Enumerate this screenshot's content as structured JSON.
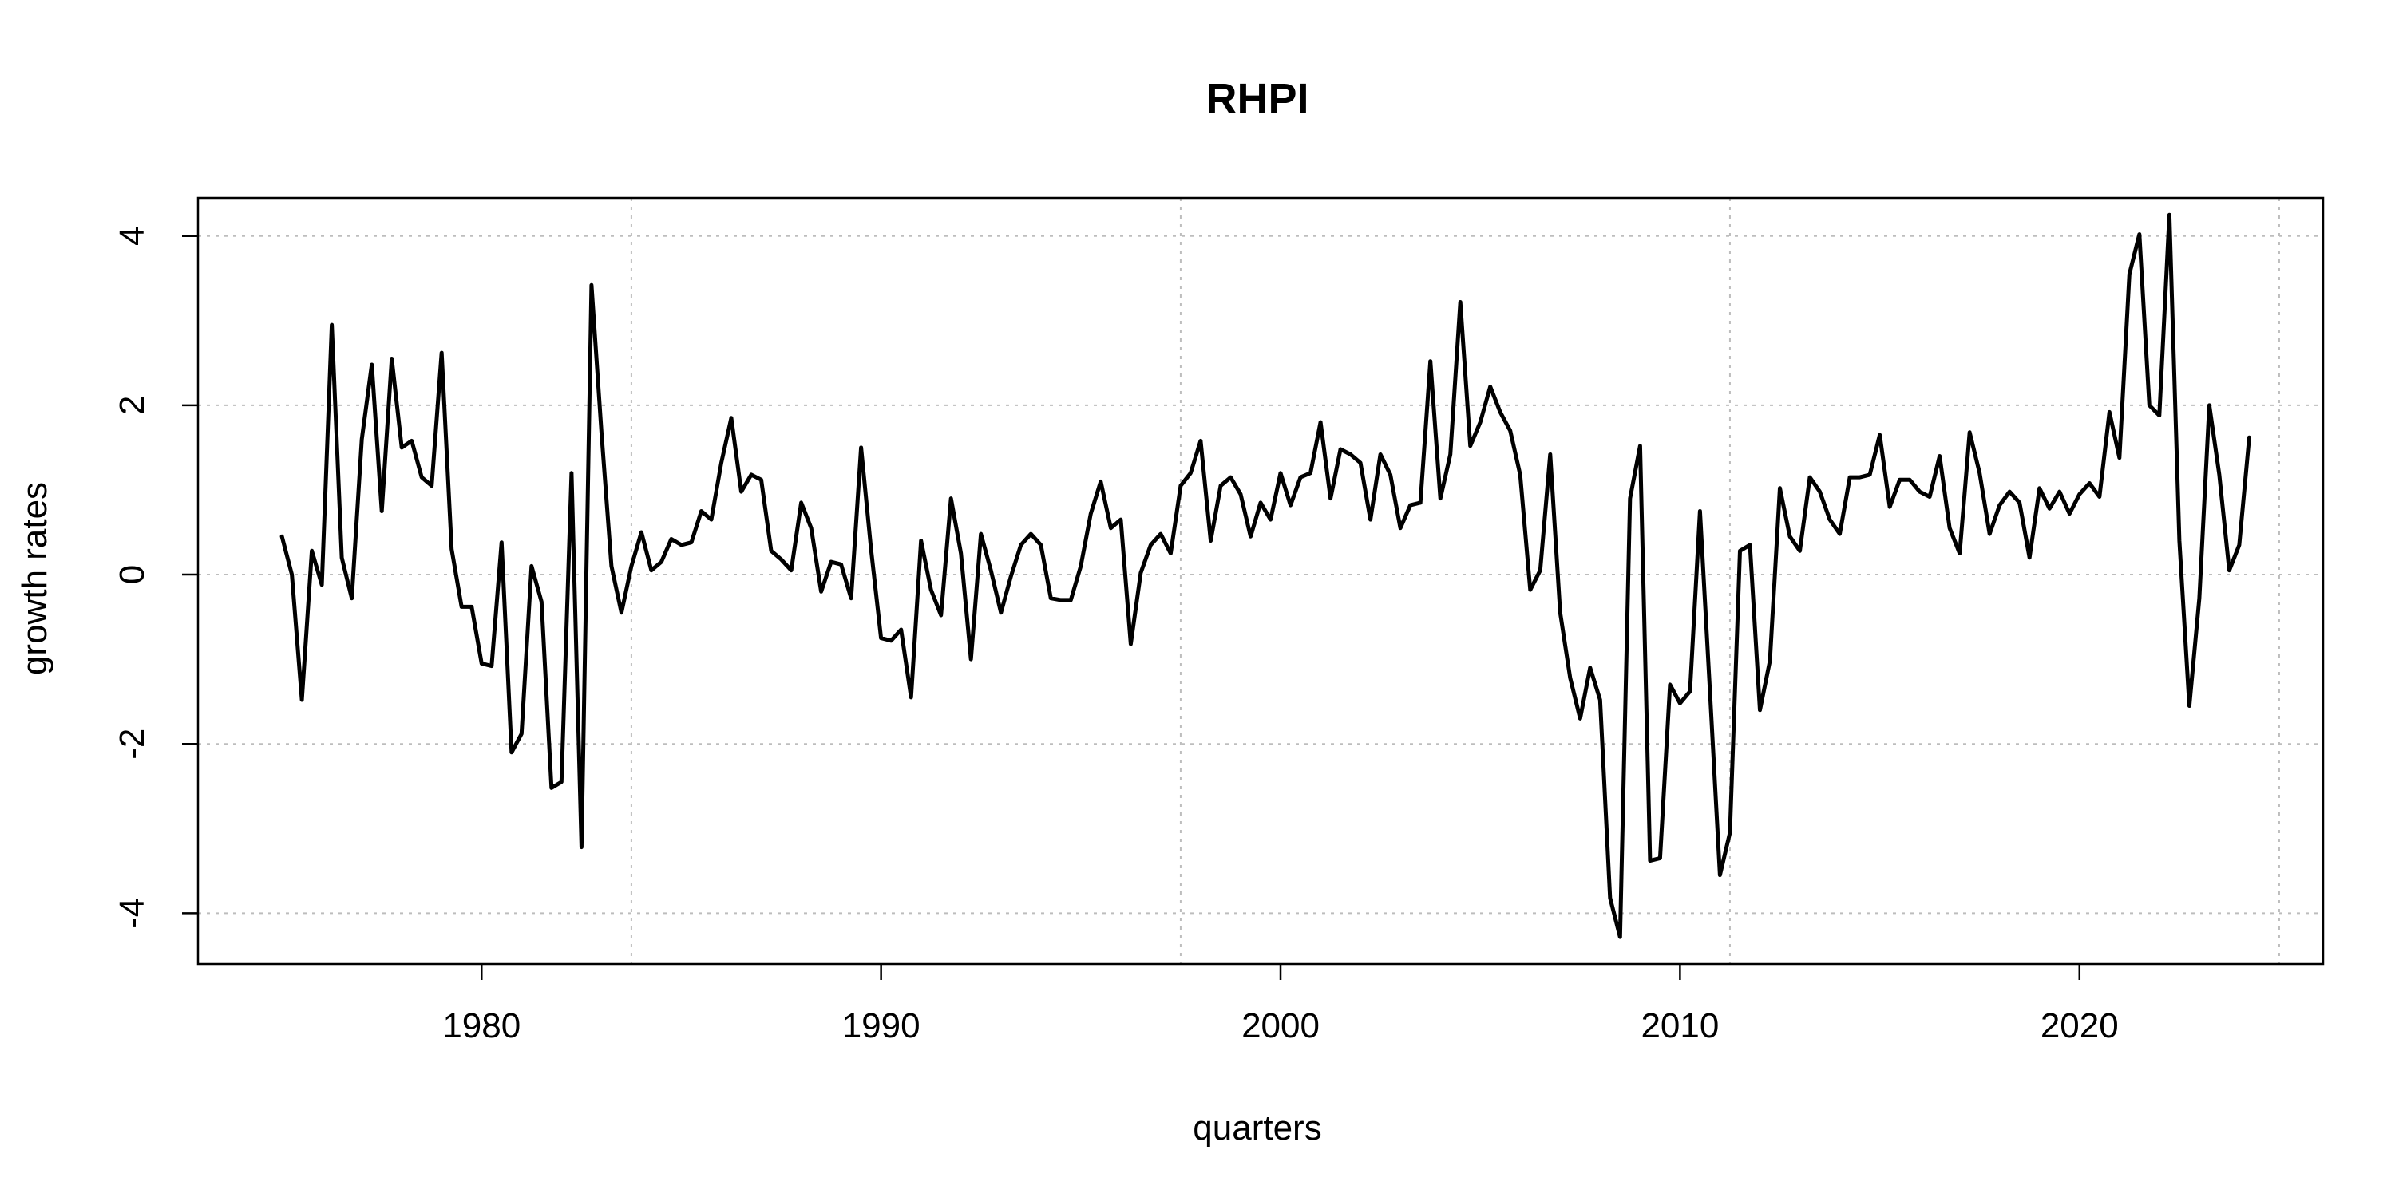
{
  "chart_data": {
    "type": "line",
    "title": "RHPI",
    "xlabel": "quarters",
    "ylabel": "growth rates",
    "xlim": [
      1972.9,
      2026.1
    ],
    "ylim": [
      -4.6,
      4.45
    ],
    "x_ticks": [
      1980,
      1990,
      2000,
      2010,
      2020
    ],
    "x_tick_labels": [
      "1980",
      "1990",
      "2000",
      "2010",
      "2020"
    ],
    "y_ticks": [
      -4,
      -2,
      0,
      2,
      4
    ],
    "y_tick_labels": [
      "-4",
      "-2",
      "0",
      "2",
      "4"
    ],
    "grid": true,
    "grid_x": [
      1983.75,
      1997.5,
      2011.25,
      2025.0
    ],
    "grid_y": [
      -4,
      -2,
      0,
      2,
      4
    ],
    "x_start": 1975.0,
    "x_step": 0.25,
    "colors": {
      "line": "#000000",
      "grid": "#bdbdbd",
      "frame": "#000000"
    },
    "series": [
      {
        "values": [
          0.45,
          0.0,
          -1.48,
          0.28,
          -0.12,
          2.95,
          0.2,
          -0.28,
          1.6,
          2.48,
          0.75,
          2.55,
          1.5,
          1.58,
          1.15,
          1.05,
          2.62,
          0.3,
          -0.38,
          -0.38,
          -1.05,
          -1.08,
          0.38,
          -2.1,
          -1.88,
          0.1,
          -0.32,
          -2.52,
          -2.45,
          1.2,
          -3.22,
          3.42,
          1.68,
          0.1,
          -0.45,
          0.1,
          0.5,
          0.05,
          0.15,
          0.42,
          0.35,
          0.38,
          0.75,
          0.65,
          1.32,
          1.85,
          0.98,
          1.18,
          1.12,
          0.28,
          0.18,
          0.05,
          0.85,
          0.55,
          -0.2,
          0.15,
          0.12,
          -0.28,
          1.5,
          0.3,
          -0.75,
          -0.78,
          -0.65,
          -1.45,
          0.4,
          -0.18,
          -0.48,
          0.9,
          0.25,
          -1.0,
          0.48,
          0.05,
          -0.45,
          -0.02,
          0.35,
          0.48,
          0.35,
          -0.28,
          -0.3,
          -0.3,
          0.1,
          0.72,
          1.1,
          0.55,
          0.65,
          -0.82,
          0.02,
          0.35,
          0.48,
          0.25,
          1.05,
          1.2,
          1.58,
          0.4,
          1.05,
          1.15,
          0.95,
          0.45,
          0.85,
          0.65,
          1.2,
          0.82,
          1.15,
          1.2,
          1.8,
          0.9,
          1.48,
          1.42,
          1.32,
          0.65,
          1.42,
          1.18,
          0.55,
          0.82,
          0.85,
          2.52,
          0.9,
          1.42,
          3.22,
          1.52,
          1.8,
          2.22,
          1.92,
          1.7,
          1.18,
          -0.18,
          0.05,
          1.42,
          -0.45,
          -1.22,
          -1.7,
          -1.1,
          -1.48,
          -3.82,
          -4.28,
          0.9,
          1.52,
          -3.38,
          -3.35,
          -1.3,
          -1.52,
          -1.38,
          0.75,
          -1.38,
          -3.55,
          -3.05,
          0.28,
          0.35,
          -1.6,
          -1.02,
          1.02,
          0.45,
          0.28,
          1.15,
          0.98,
          0.65,
          0.48,
          1.15,
          1.15,
          1.18,
          1.65,
          0.8,
          1.12,
          1.12,
          0.98,
          0.92,
          1.4,
          0.55,
          0.25,
          1.68,
          1.2,
          0.48,
          0.82,
          0.98,
          0.85,
          0.2,
          1.02,
          0.78,
          0.98,
          0.72,
          0.95,
          1.08,
          0.92,
          1.92,
          1.38,
          3.55,
          4.02,
          2.0,
          1.88,
          4.25,
          0.4,
          -1.55,
          -0.28,
          2.0,
          1.18,
          0.05,
          0.35,
          1.62
        ]
      }
    ]
  }
}
